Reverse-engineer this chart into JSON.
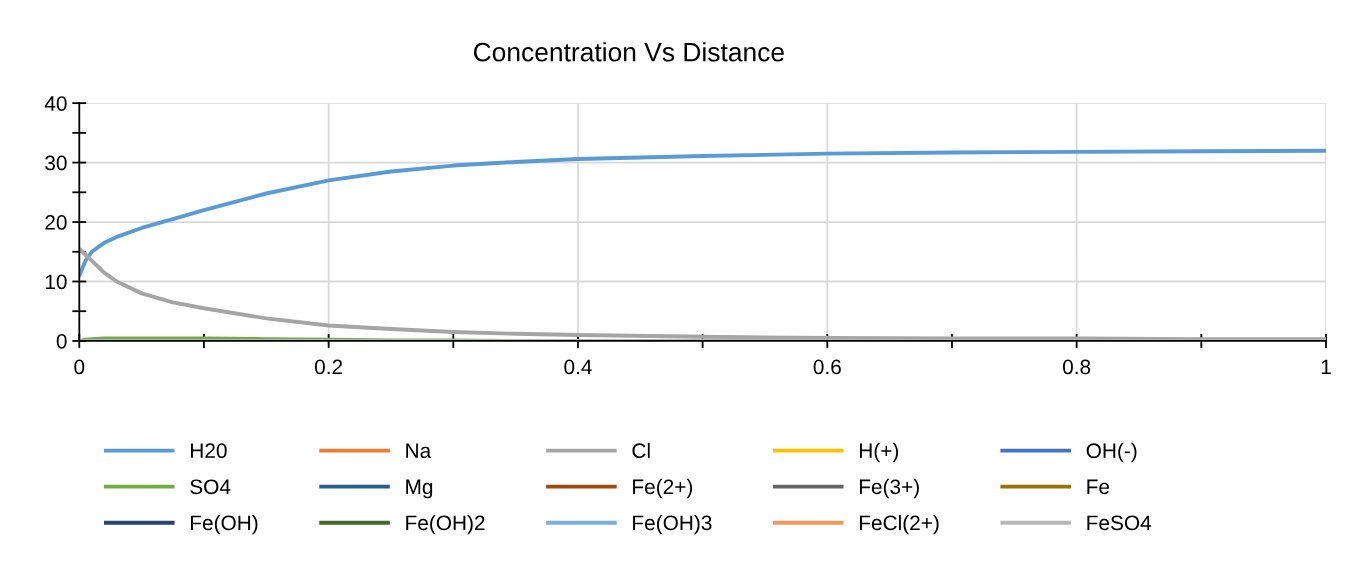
{
  "chart_data": {
    "type": "line",
    "title": "Concentration Vs Distance",
    "x": [
      0,
      0.005,
      0.01,
      0.02,
      0.03,
      0.05,
      0.075,
      0.1,
      0.15,
      0.2,
      0.25,
      0.3,
      0.35,
      0.4,
      0.5,
      0.6,
      0.7,
      0.8,
      0.9,
      1
    ],
    "xlim": [
      0,
      1
    ],
    "xticks": [
      0,
      {
        "value": 0.1,
        "label": null
      },
      0.2,
      {
        "value": 0.3,
        "label": null
      },
      0.4,
      {
        "value": 0.5,
        "label": null
      },
      0.6,
      {
        "value": 0.7,
        "label": null
      },
      0.8,
      {
        "value": 0.9,
        "label": null
      },
      1
    ],
    "ylim": [
      0,
      40
    ],
    "yticks": [
      0,
      {
        "value": 5,
        "label": null
      },
      10,
      {
        "value": 15,
        "label": null
      },
      20,
      {
        "value": 25,
        "label": null
      },
      30,
      {
        "value": 35,
        "label": null
      },
      40
    ],
    "grid": true,
    "legend": "bottom",
    "marker": "none",
    "line_style": "solid",
    "series": [
      {
        "name": "H20",
        "color": "#5b9bd5",
        "values": [
          11,
          13.5,
          15,
          16.5,
          17.5,
          19,
          20.5,
          22,
          24.8,
          27,
          28.5,
          29.5,
          30.1,
          30.6,
          31.1,
          31.5,
          31.7,
          31.8,
          31.9,
          32
        ]
      },
      {
        "name": "Na",
        "color": "#ed7d31",
        "values": [
          null,
          null,
          null,
          null,
          null,
          null,
          null,
          null,
          null,
          null,
          null,
          null,
          null,
          null,
          null,
          null,
          null,
          null,
          null,
          null
        ]
      },
      {
        "name": "Cl",
        "color": "#a5a5a5",
        "values": [
          15.5,
          14.5,
          13.5,
          11.5,
          10,
          8,
          6.5,
          5.5,
          3.8,
          2.6,
          2,
          1.5,
          1.2,
          1,
          0.7,
          0.5,
          0.4,
          0.4,
          0.3,
          0.3
        ]
      },
      {
        "name": "H(+)",
        "color": "#ffc000",
        "values": [
          null,
          null,
          null,
          null,
          null,
          null,
          null,
          null,
          null,
          null,
          null,
          null,
          null,
          null,
          null,
          null,
          null,
          null,
          null,
          null
        ]
      },
      {
        "name": "OH(-)",
        "color": "#4472c4",
        "values": [
          null,
          null,
          null,
          null,
          null,
          null,
          null,
          null,
          null,
          null,
          null,
          null,
          null,
          null,
          null,
          null,
          null,
          null,
          null,
          null
        ]
      },
      {
        "name": "SO4",
        "color": "#70ad47",
        "values": [
          0,
          0.2,
          0.3,
          0.4,
          0.4,
          0.4,
          0.4,
          0.4,
          0.3,
          0.2,
          0.1,
          0.1,
          0,
          null,
          null,
          null,
          null,
          null,
          null,
          null
        ]
      },
      {
        "name": "Mg",
        "color": "#255e91",
        "values": [
          null,
          null,
          null,
          null,
          null,
          null,
          null,
          null,
          null,
          null,
          null,
          null,
          null,
          null,
          null,
          null,
          null,
          null,
          null,
          null
        ]
      },
      {
        "name": "Fe(2+)",
        "color": "#9e480e",
        "values": [
          null,
          null,
          null,
          null,
          null,
          null,
          null,
          null,
          null,
          null,
          null,
          null,
          null,
          null,
          null,
          null,
          null,
          null,
          null,
          null
        ]
      },
      {
        "name": "Fe(3+)",
        "color": "#636363",
        "values": [
          null,
          null,
          null,
          null,
          null,
          null,
          null,
          null,
          null,
          null,
          null,
          null,
          null,
          null,
          null,
          null,
          null,
          null,
          null,
          null
        ]
      },
      {
        "name": "Fe",
        "color": "#997300",
        "values": [
          null,
          null,
          null,
          null,
          null,
          null,
          null,
          null,
          null,
          null,
          null,
          null,
          null,
          null,
          null,
          null,
          null,
          null,
          null,
          null
        ]
      },
      {
        "name": "Fe(OH)",
        "color": "#264478",
        "values": [
          null,
          null,
          null,
          null,
          null,
          null,
          null,
          null,
          null,
          null,
          null,
          null,
          null,
          null,
          null,
          null,
          null,
          null,
          null,
          null
        ]
      },
      {
        "name": "Fe(OH)2",
        "color": "#43682b",
        "values": [
          null,
          null,
          null,
          null,
          null,
          null,
          null,
          null,
          null,
          null,
          null,
          null,
          null,
          null,
          null,
          null,
          null,
          null,
          null,
          null
        ]
      },
      {
        "name": "Fe(OH)3",
        "color": "#7cafdd",
        "values": [
          null,
          null,
          null,
          null,
          null,
          null,
          null,
          null,
          null,
          null,
          null,
          null,
          null,
          null,
          null,
          null,
          null,
          null,
          null,
          null
        ]
      },
      {
        "name": "FeCl(2+)",
        "color": "#f1975a",
        "values": [
          null,
          null,
          null,
          null,
          null,
          null,
          null,
          null,
          null,
          null,
          null,
          null,
          null,
          null,
          null,
          null,
          null,
          null,
          null,
          null
        ]
      },
      {
        "name": "FeSO4",
        "color": "#b7b7b7",
        "values": [
          0,
          0,
          0,
          0,
          0,
          0,
          0,
          0,
          0,
          0,
          0,
          0,
          0,
          0,
          0,
          0,
          0,
          0,
          0,
          0
        ]
      }
    ]
  }
}
